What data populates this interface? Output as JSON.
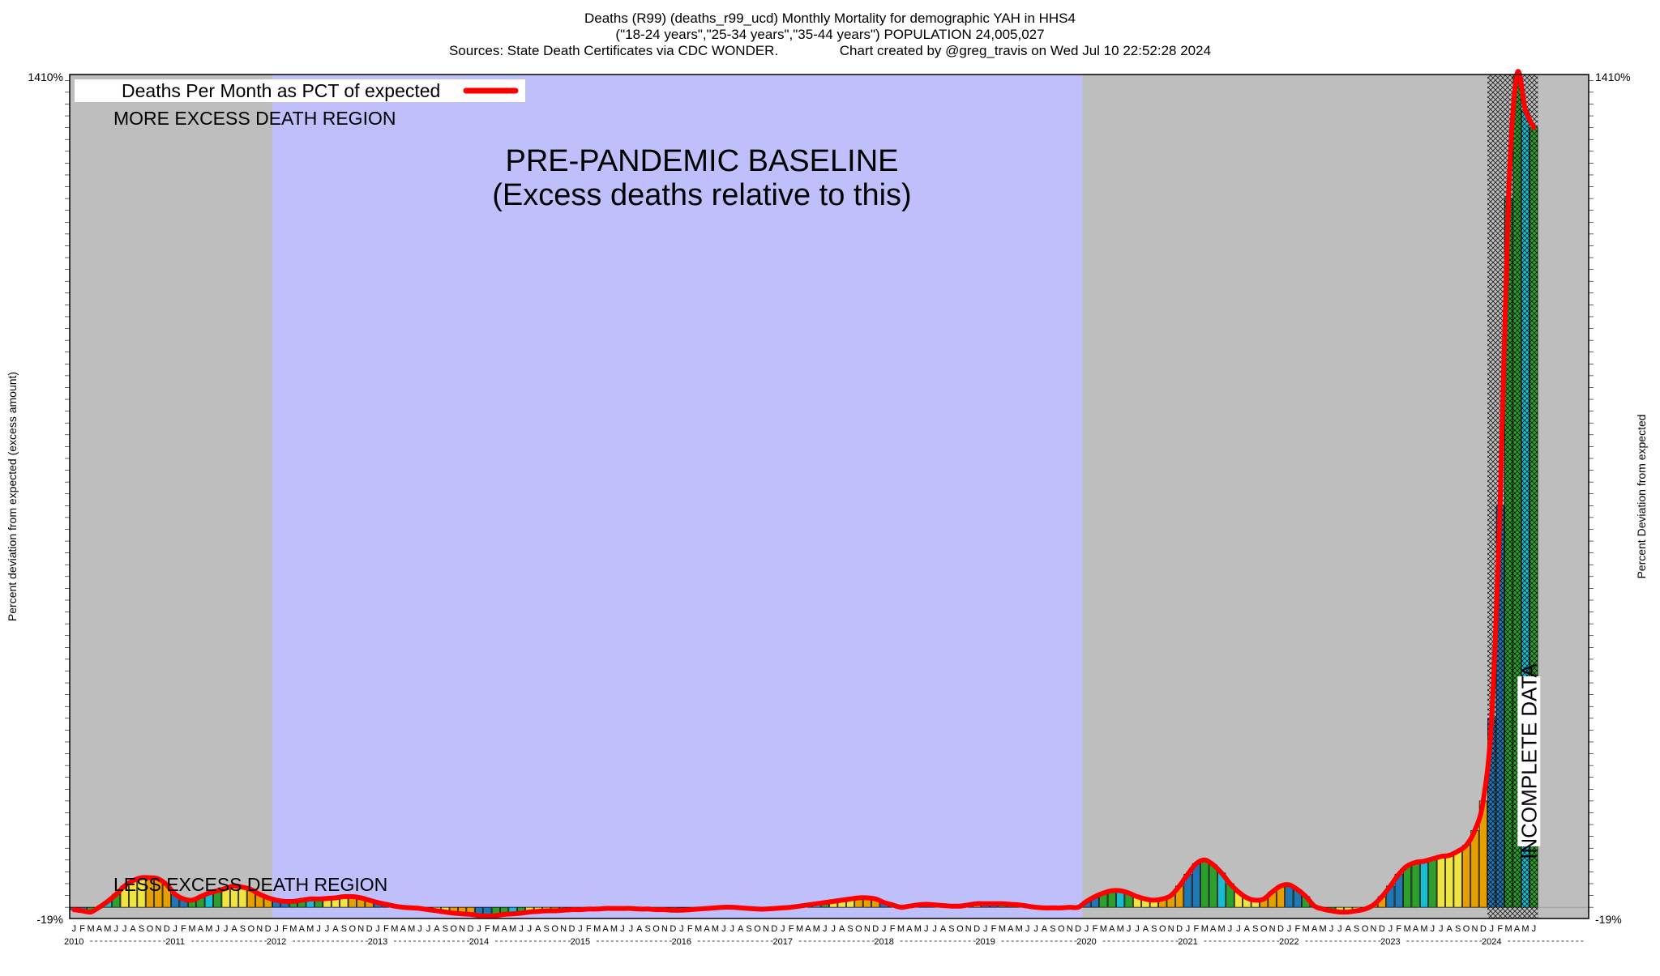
{
  "chart_data": {
    "type": "bar",
    "title_lines": [
      "Deaths (R99) (deaths_r99_ucd) Monthly Mortality for demographic YAH in HHS4",
      "(\"18-24 years\",\"25-34 years\",\"35-44 years\") POPULATION 24,005,027",
      "Sources: State Death Certificates via CDC WONDER.                Chart created by @greg_travis on Wed Jul 10 22:52:28 2024"
    ],
    "ylabel_left": "Percent deviation from expected (excess amount)",
    "ylabel_right": "Percent Deviation from expected",
    "legend": {
      "label": "Deaths Per Month as PCT of expected",
      "color": "#ff0000",
      "placement": "top-left"
    },
    "annotations": {
      "more_region": "MORE EXCESS DEATH REGION",
      "less_region": "LESS EXCESS DEATH REGION",
      "baseline_line1": "PRE-PANDEMIC BASELINE",
      "baseline_line2": "(Excess deaths relative to this)",
      "incomplete": "INCOMPLETE DATA"
    },
    "ylim": [
      -19,
      1410
    ],
    "y_tick_bottom": "-19%",
    "y_tick_top": "1410%",
    "years": [
      "2010",
      "2011",
      "2012",
      "2013",
      "2014",
      "2015",
      "2016",
      "2017",
      "2018",
      "2019",
      "2020",
      "2021",
      "2022",
      "2023",
      "2024"
    ],
    "month_letters": [
      "J",
      "F",
      "M",
      "A",
      "M",
      "J",
      "J",
      "A",
      "S",
      "O",
      "N",
      "D"
    ],
    "baseline_months": {
      "start": "2012-01",
      "end": "2019-12"
    },
    "incomplete_months": {
      "start": "2024-01",
      "end": "2024-06"
    },
    "x_start": "2010-01",
    "values": [
      -4,
      -6,
      -8,
      0,
      10,
      22,
      36,
      45,
      50,
      50,
      48,
      38,
      22,
      14,
      12,
      18,
      24,
      28,
      32,
      36,
      34,
      30,
      22,
      16,
      12,
      10,
      10,
      12,
      14,
      14,
      15,
      16,
      18,
      18,
      16,
      12,
      8,
      5,
      2,
      0,
      -1,
      -2,
      -4,
      -6,
      -8,
      -10,
      -11,
      -12,
      -14,
      -15,
      -14,
      -12,
      -11,
      -10,
      -8,
      -7,
      -6,
      -6,
      -5,
      -4,
      -4,
      -3,
      -3,
      -2,
      -2,
      -2,
      -2,
      -3,
      -3,
      -4,
      -4,
      -5,
      -5,
      -4,
      -3,
      -2,
      -1,
      0,
      0,
      -1,
      -2,
      -3,
      -3,
      -2,
      -1,
      0,
      2,
      4,
      6,
      8,
      10,
      12,
      14,
      16,
      16,
      14,
      8,
      4,
      0,
      2,
      4,
      5,
      4,
      3,
      2,
      2,
      4,
      6,
      6,
      6,
      6,
      5,
      4,
      2,
      0,
      -1,
      -1,
      -1,
      0,
      0,
      10,
      18,
      24,
      28,
      28,
      24,
      18,
      14,
      12,
      14,
      20,
      36,
      56,
      74,
      80,
      72,
      58,
      40,
      26,
      16,
      12,
      14,
      26,
      36,
      38,
      30,
      18,
      2,
      -3,
      -6,
      -8,
      -8,
      -6,
      -3,
      4,
      18,
      36,
      56,
      70,
      76,
      78,
      82,
      86,
      88,
      95,
      105,
      130,
      180,
      320,
      680,
      1200,
      1410,
      1350,
      1320
    ],
    "series_color_pattern": [
      "#1f77b4",
      "#1f77b4",
      "#2ca02c",
      "#2ca02c",
      "#17becf",
      "#2ca02c",
      "#f0e442",
      "#f0e442",
      "#f0e442",
      "#e69f00",
      "#e69f00",
      "#e69f00"
    ]
  }
}
